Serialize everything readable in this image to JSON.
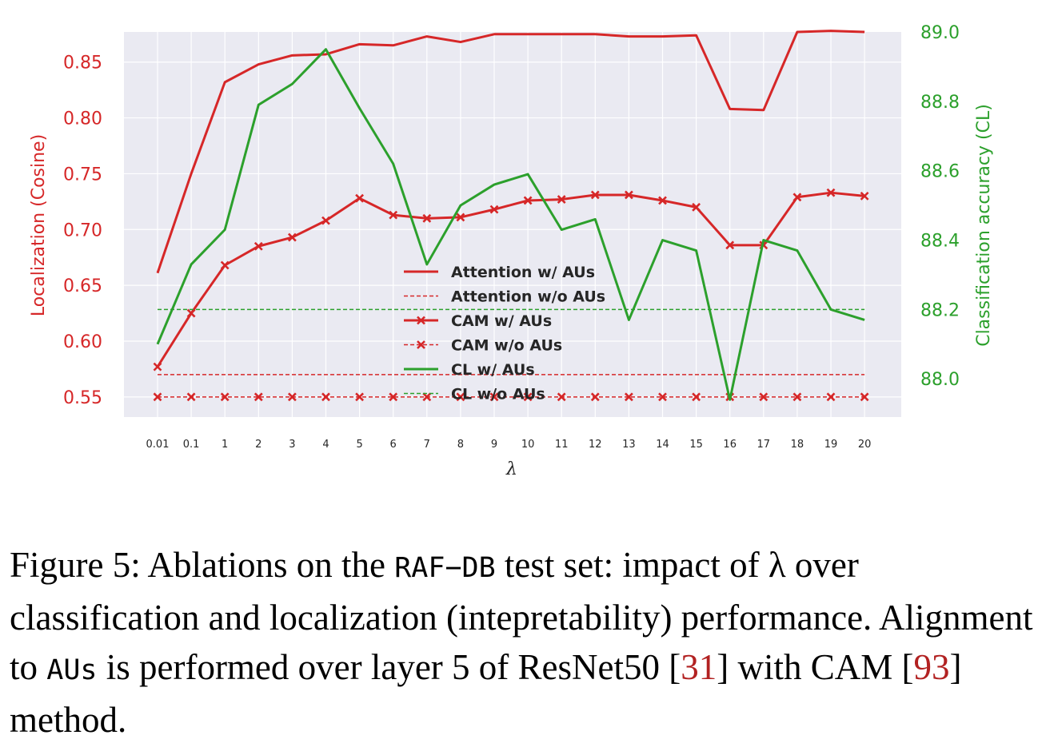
{
  "chart_data": {
    "type": "line",
    "categories": [
      "0.01",
      "0.1",
      "1",
      "2",
      "3",
      "4",
      "5",
      "6",
      "7",
      "8",
      "9",
      "10",
      "11",
      "12",
      "13",
      "14",
      "15",
      "16",
      "17",
      "18",
      "19",
      "20"
    ],
    "xlabel": "λ",
    "ylabel_left": "Localization (Cosine)",
    "ylabel_right": "Classification accuracy (CL)",
    "ylim_left": [
      0.532,
      0.877
    ],
    "ylim_right": [
      87.89,
      89.0
    ],
    "yticks_left": [
      0.55,
      0.6,
      0.65,
      0.7,
      0.75,
      0.8,
      0.85
    ],
    "yticks_left_labels": [
      "0.55",
      "0.60",
      "0.65",
      "0.70",
      "0.75",
      "0.80",
      "0.85"
    ],
    "yticks_right": [
      88.0,
      88.2,
      88.4,
      88.6,
      88.8,
      89.0
    ],
    "yticks_right_labels": [
      "88.0",
      "88.2",
      "88.4",
      "88.6",
      "88.8",
      "89.0"
    ],
    "grid": true,
    "legend_position": "center",
    "series": [
      {
        "name": "Attention w/ AUs",
        "axis": "left",
        "color": "#d62728",
        "style": "solid",
        "marker": "none",
        "values": [
          0.661,
          0.75,
          0.832,
          0.848,
          0.856,
          0.857,
          0.866,
          0.865,
          0.873,
          0.868,
          0.875,
          0.875,
          0.875,
          0.875,
          0.873,
          0.873,
          0.874,
          0.808,
          0.807,
          0.877,
          0.878,
          0.877
        ]
      },
      {
        "name": "Attention w/o AUs",
        "axis": "left",
        "color": "#d62728",
        "style": "dashed",
        "marker": "none",
        "values": [
          0.57,
          0.57,
          0.57,
          0.57,
          0.57,
          0.57,
          0.57,
          0.57,
          0.57,
          0.57,
          0.57,
          0.57,
          0.57,
          0.57,
          0.57,
          0.57,
          0.57,
          0.57,
          0.57,
          0.57,
          0.57,
          0.57
        ]
      },
      {
        "name": "CAM w/ AUs",
        "axis": "left",
        "color": "#d62728",
        "style": "solid",
        "marker": "x",
        "values": [
          0.577,
          0.625,
          0.668,
          0.685,
          0.693,
          0.708,
          0.728,
          0.713,
          0.71,
          0.711,
          0.718,
          0.726,
          0.727,
          0.731,
          0.731,
          0.726,
          0.72,
          0.686,
          0.686,
          0.729,
          0.733,
          0.73
        ]
      },
      {
        "name": "CAM w/o AUs",
        "axis": "left",
        "color": "#d62728",
        "style": "dashed",
        "marker": "x",
        "values": [
          0.55,
          0.55,
          0.55,
          0.55,
          0.55,
          0.55,
          0.55,
          0.55,
          0.55,
          0.55,
          0.55,
          0.55,
          0.55,
          0.55,
          0.55,
          0.55,
          0.55,
          0.55,
          0.55,
          0.55,
          0.55,
          0.55
        ]
      },
      {
        "name": "CL w/ AUs",
        "axis": "right",
        "color": "#2ca02c",
        "style": "solid",
        "marker": "none",
        "values": [
          88.1,
          88.33,
          88.43,
          88.79,
          88.85,
          88.95,
          88.78,
          88.62,
          88.33,
          88.5,
          88.56,
          88.59,
          88.43,
          88.46,
          88.17,
          88.4,
          88.37,
          87.94,
          88.4,
          88.37,
          88.2,
          88.17
        ]
      },
      {
        "name": "CL w/o AUs",
        "axis": "right",
        "color": "#2ca02c",
        "style": "dashed",
        "marker": "none",
        "values": [
          88.2,
          88.2,
          88.2,
          88.2,
          88.2,
          88.2,
          88.2,
          88.2,
          88.2,
          88.2,
          88.2,
          88.2,
          88.2,
          88.2,
          88.2,
          88.2,
          88.2,
          88.2,
          88.2,
          88.2,
          88.2,
          88.2
        ]
      }
    ]
  },
  "caption": {
    "prefix": "Figure 5: Ablations on the ",
    "dataset": "RAF−DB",
    "mid1": " test set: impact of λ over classification and localization (intepretability) performance. Alignment to ",
    "aus": "AUs",
    "mid2": " is performed over layer 5 of ResNet50 [",
    "ref1": "31",
    "mid3": "] with CAM [",
    "ref2": "93",
    "suffix": "] method."
  }
}
